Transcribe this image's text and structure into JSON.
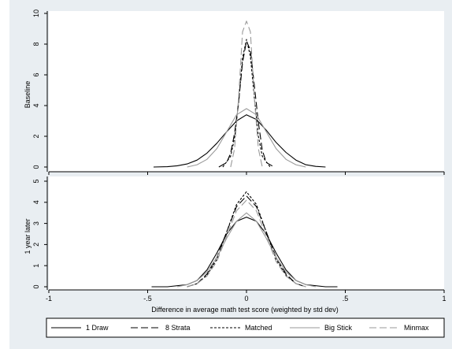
{
  "chart_data": {
    "type": "line",
    "xlabel": "Difference in average math test score (weighted by std dev)",
    "x_ticks": [
      -1,
      -0.5,
      0,
      0.5,
      1
    ],
    "x_tick_labels": [
      "-1",
      "-.5",
      "0",
      ".5",
      "1"
    ],
    "xlim": [
      -1,
      1
    ],
    "panels": [
      {
        "ylabel": "Baseline",
        "ylim": [
          0,
          10
        ],
        "y_ticks": [
          0,
          2,
          4,
          6,
          8,
          10
        ],
        "y_tick_labels": [
          "0",
          "2",
          "4",
          "6",
          "8",
          "10"
        ],
        "series": [
          {
            "name": "1 Draw",
            "x": [
              -0.47,
              -0.4,
              -0.35,
              -0.3,
              -0.25,
              -0.2,
              -0.15,
              -0.1,
              -0.05,
              0,
              0.05,
              0.1,
              0.15,
              0.2,
              0.25,
              0.3,
              0.35,
              0.4
            ],
            "y": [
              0.0,
              0.02,
              0.08,
              0.2,
              0.45,
              0.9,
              1.55,
              2.3,
              3.0,
              3.4,
              3.1,
              2.4,
              1.6,
              0.95,
              0.45,
              0.15,
              0.04,
              0.0
            ]
          },
          {
            "name": "8 Strata",
            "x": [
              -0.14,
              -0.1,
              -0.08,
              -0.06,
              -0.04,
              -0.02,
              0,
              0.02,
              0.04,
              0.06,
              0.08,
              0.1,
              0.14
            ],
            "y": [
              0.0,
              0.3,
              0.9,
              2.2,
              4.2,
              6.8,
              8.2,
              7.6,
              5.3,
              2.9,
              1.1,
              0.3,
              0.0
            ]
          },
          {
            "name": "Matched",
            "x": [
              -0.12,
              -0.08,
              -0.06,
              -0.04,
              -0.02,
              0,
              0.02,
              0.04,
              0.06,
              0.08,
              0.12
            ],
            "y": [
              0.0,
              0.7,
              1.9,
              4.2,
              7.1,
              8.3,
              7.2,
              4.5,
              2.0,
              0.7,
              0.0
            ]
          },
          {
            "name": "Big Stick",
            "x": [
              -0.3,
              -0.25,
              -0.2,
              -0.15,
              -0.1,
              -0.05,
              0,
              0.05,
              0.1,
              0.15,
              0.2,
              0.25,
              0.3
            ],
            "y": [
              0.0,
              0.15,
              0.5,
              1.2,
              2.3,
              3.4,
              3.8,
              3.4,
              2.3,
              1.2,
              0.5,
              0.15,
              0.0
            ]
          },
          {
            "name": "Minmax",
            "x": [
              -0.08,
              -0.06,
              -0.04,
              -0.02,
              0,
              0.02,
              0.04,
              0.06,
              0.08
            ],
            "y": [
              0.0,
              1.2,
              4.5,
              8.8,
              9.5,
              8.8,
              4.5,
              1.2,
              0.0
            ]
          }
        ]
      },
      {
        "ylabel": "1 year later",
        "ylim": [
          0,
          5
        ],
        "y_ticks": [
          0,
          1,
          2,
          3,
          4,
          5
        ],
        "y_tick_labels": [
          "0",
          "1",
          "2",
          "3",
          "4",
          "5"
        ],
        "series": [
          {
            "name": "1 Draw",
            "x": [
              -0.48,
              -0.4,
              -0.3,
              -0.25,
              -0.2,
              -0.15,
              -0.1,
              -0.05,
              0,
              0.05,
              0.1,
              0.15,
              0.2,
              0.25,
              0.3,
              0.4,
              0.46
            ],
            "y": [
              0.0,
              0.0,
              0.1,
              0.3,
              0.8,
              1.6,
              2.5,
              3.1,
              3.3,
              3.1,
              2.5,
              1.6,
              0.8,
              0.3,
              0.1,
              0.0,
              0.0
            ]
          },
          {
            "name": "8 Strata",
            "x": [
              -0.3,
              -0.25,
              -0.2,
              -0.15,
              -0.1,
              -0.05,
              0,
              0.05,
              0.1,
              0.15,
              0.2,
              0.25,
              0.3
            ],
            "y": [
              0.0,
              0.15,
              0.6,
              1.4,
              2.6,
              3.8,
              4.3,
              3.8,
              2.6,
              1.4,
              0.6,
              0.15,
              0.0
            ]
          },
          {
            "name": "Matched",
            "x": [
              -0.3,
              -0.25,
              -0.2,
              -0.15,
              -0.1,
              -0.05,
              0,
              0.05,
              0.1,
              0.15,
              0.2,
              0.25,
              0.3
            ],
            "y": [
              0.0,
              0.15,
              0.55,
              1.3,
              2.6,
              3.9,
              4.5,
              3.9,
              2.6,
              1.3,
              0.55,
              0.15,
              0.0
            ]
          },
          {
            "name": "Big Stick",
            "x": [
              -0.35,
              -0.3,
              -0.25,
              -0.2,
              -0.15,
              -0.1,
              -0.05,
              0,
              0.05,
              0.1,
              0.15,
              0.2,
              0.25,
              0.3,
              0.35
            ],
            "y": [
              0.0,
              0.1,
              0.3,
              0.7,
              1.4,
              2.3,
              3.1,
              3.5,
              3.1,
              2.3,
              1.4,
              0.7,
              0.3,
              0.1,
              0.0
            ]
          },
          {
            "name": "Minmax",
            "x": [
              -0.3,
              -0.25,
              -0.2,
              -0.15,
              -0.1,
              -0.05,
              0,
              0.05,
              0.1,
              0.15,
              0.2,
              0.25,
              0.3
            ],
            "y": [
              0.0,
              0.15,
              0.5,
              1.2,
              2.4,
              3.6,
              4.1,
              3.6,
              2.4,
              1.2,
              0.5,
              0.15,
              0.0
            ]
          }
        ]
      }
    ],
    "legend": {
      "placement": "bottom",
      "items": [
        {
          "label": "1 Draw",
          "stroke": "#000000",
          "dash": "solid"
        },
        {
          "label": "8 Strata",
          "stroke": "#000000",
          "dash": "long-dash"
        },
        {
          "label": "Matched",
          "stroke": "#000000",
          "dash": "short-dash"
        },
        {
          "label": "Big Stick",
          "stroke": "#9a9a9a",
          "dash": "solid"
        },
        {
          "label": "Minmax",
          "stroke": "#9a9a9a",
          "dash": "long-dash"
        }
      ]
    },
    "grid": false
  },
  "colors": {
    "background": "#e9eef2",
    "plot_area": "#ffffff",
    "dark_series": "#000000",
    "light_series": "#9a9a9a"
  }
}
